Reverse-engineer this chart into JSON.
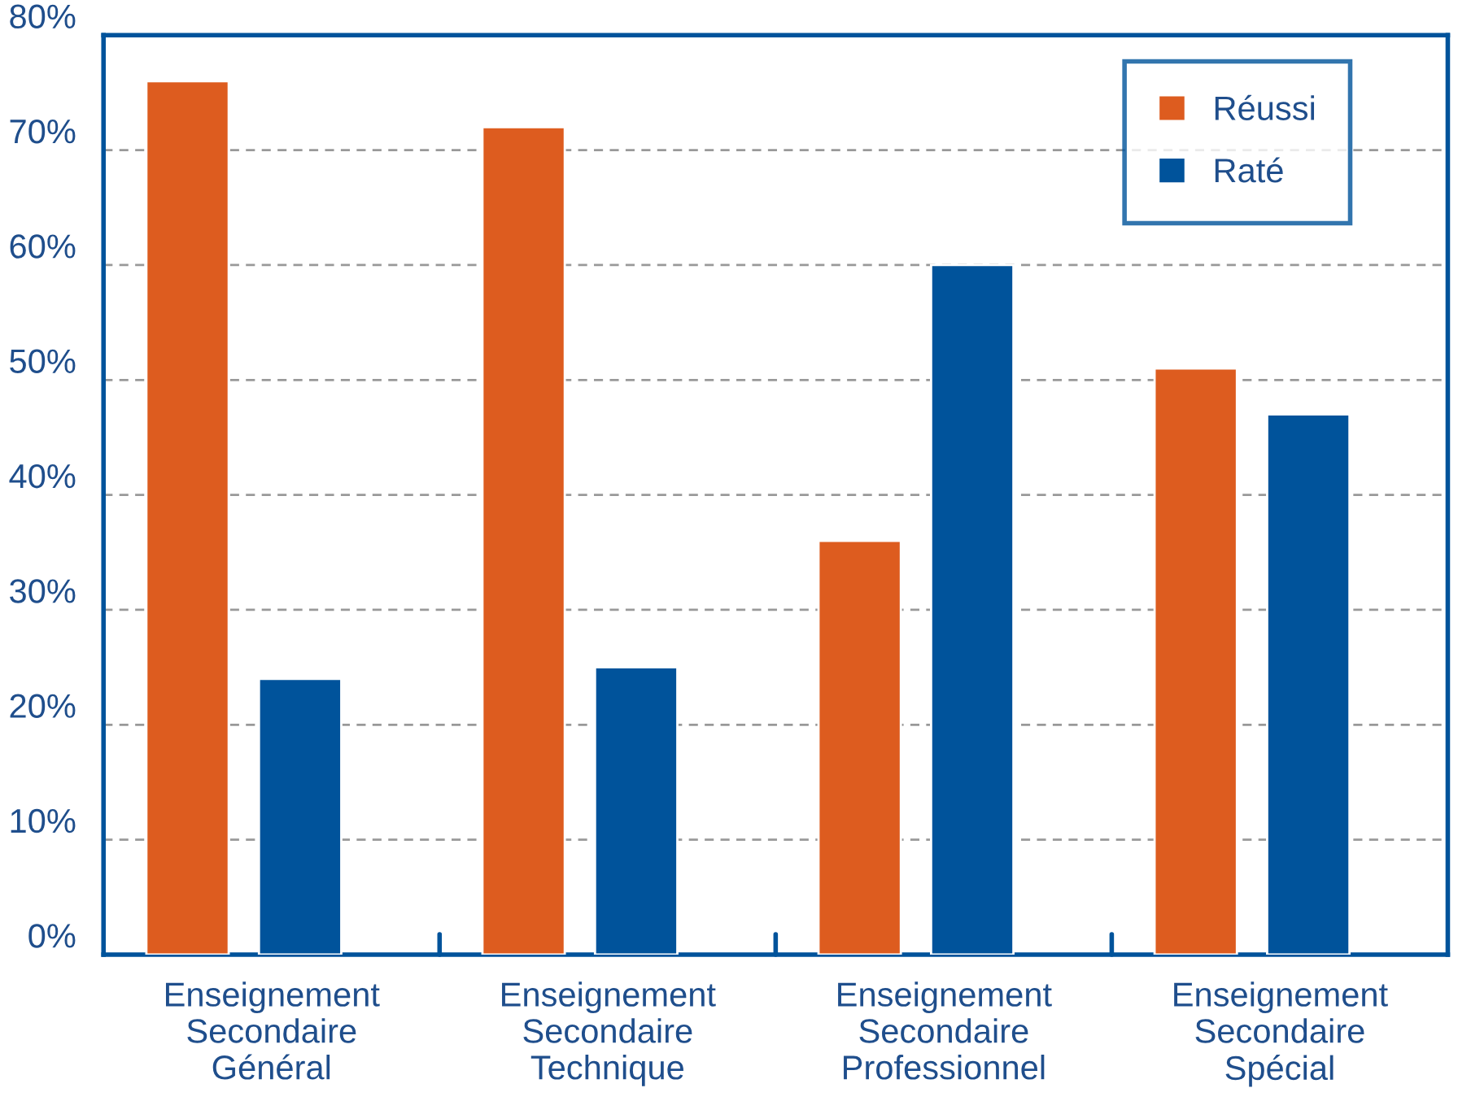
{
  "chart_data": {
    "type": "bar",
    "categories": [
      "Enseignement\nSecondaire\nGénéral",
      "Enseignement\nSecondaire\nTechnique",
      "Enseignement\nSecondaire\nProfessionnel",
      "Enseignement\nSecondaire\nSpécial"
    ],
    "series": [
      {
        "name": "Réussi",
        "color": "#dd5c1f",
        "values": [
          76,
          72,
          36,
          51
        ]
      },
      {
        "name": "Raté",
        "color": "#00539b",
        "values": [
          24,
          25,
          60,
          47
        ]
      }
    ],
    "ylim": [
      0,
      80
    ],
    "yticks": [
      {
        "value": 0,
        "label": "0%"
      },
      {
        "value": 10,
        "label": "10%"
      },
      {
        "value": 20,
        "label": "20%"
      },
      {
        "value": 30,
        "label": "30%"
      },
      {
        "value": 40,
        "label": "40%"
      },
      {
        "value": 50,
        "label": "50%"
      },
      {
        "value": 60,
        "label": "60%"
      },
      {
        "value": 70,
        "label": "70%"
      },
      {
        "value": 80,
        "label": "80%"
      }
    ],
    "grid": "y",
    "legend": "top right"
  }
}
